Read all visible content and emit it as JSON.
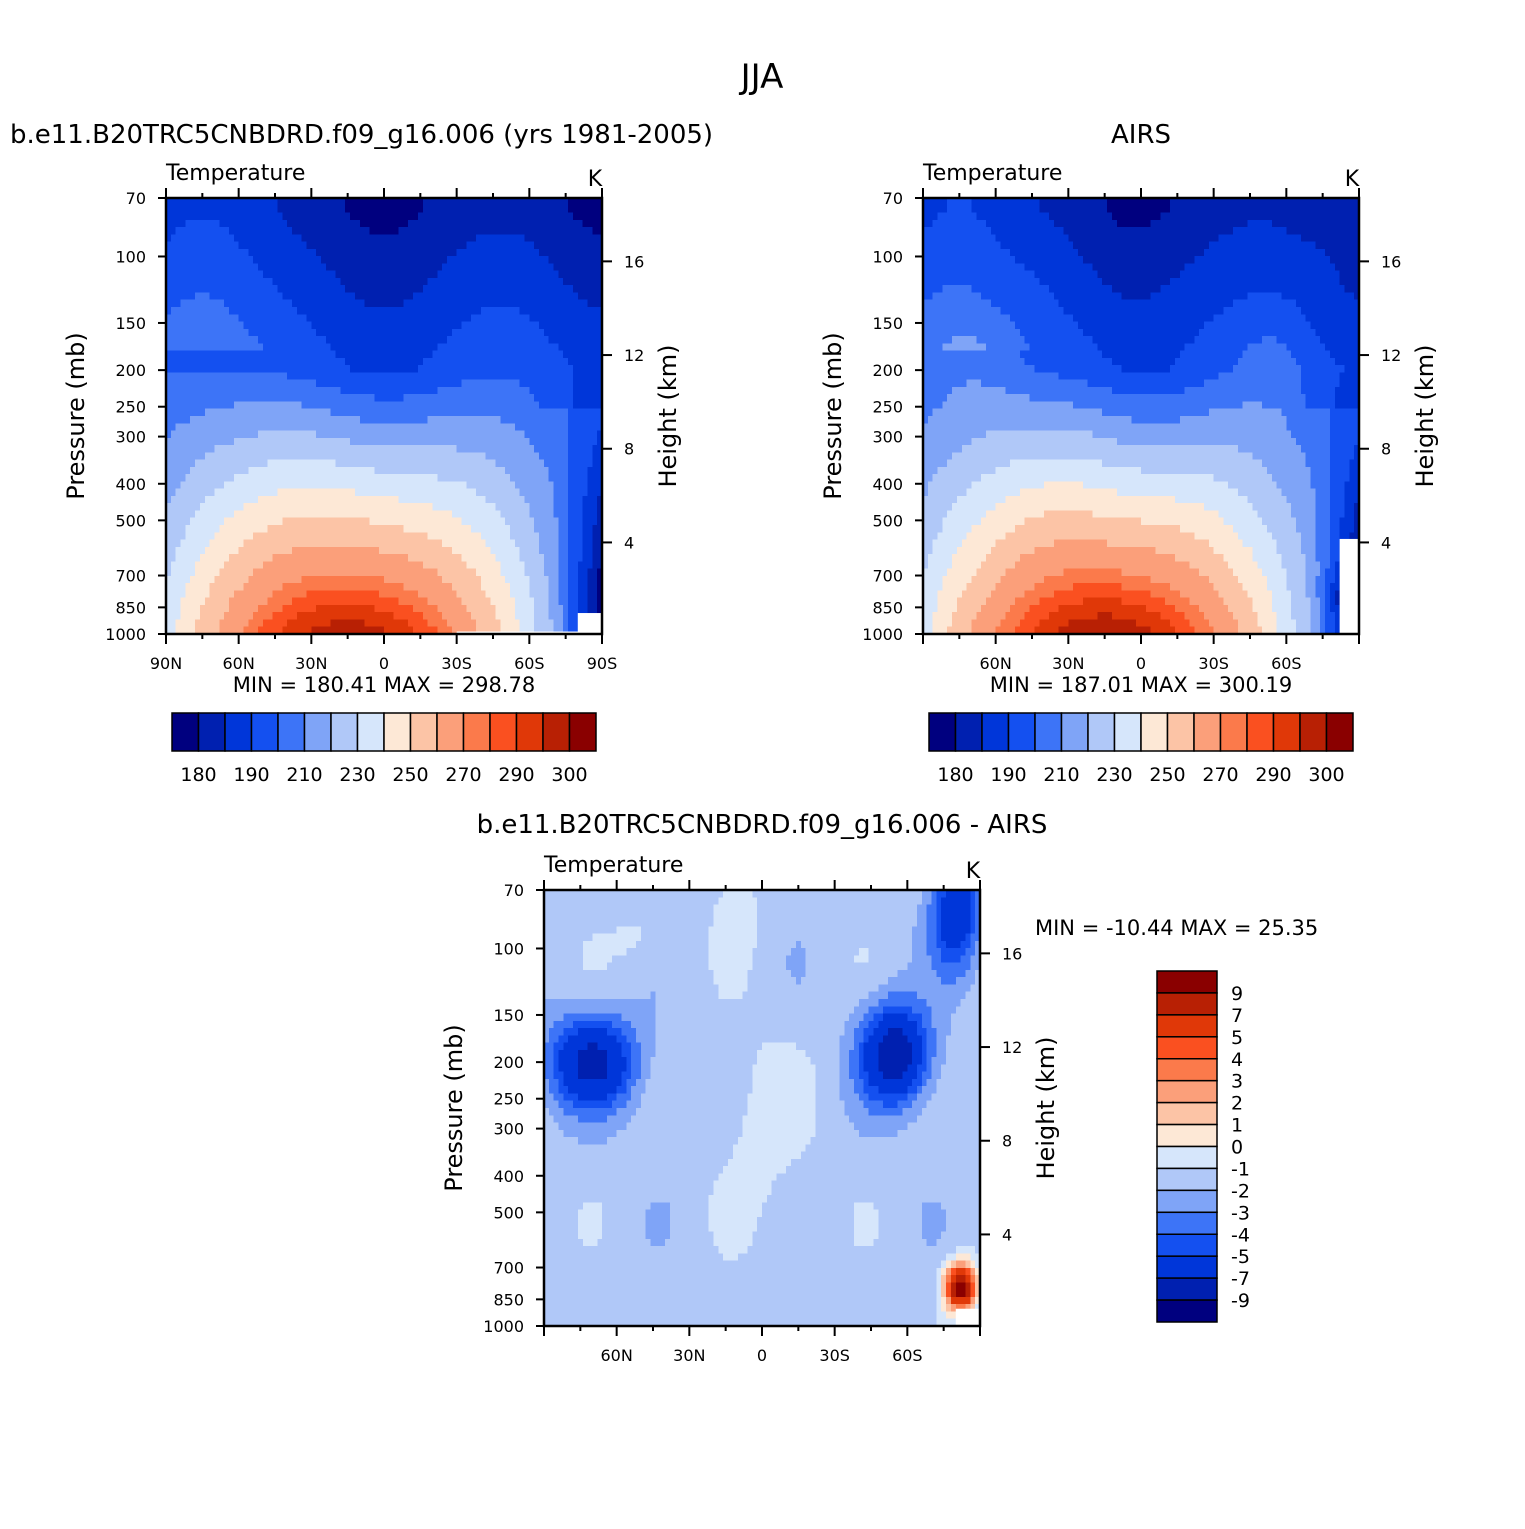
{
  "figure": {
    "title": "JJA",
    "season": "JJA"
  },
  "colors": {
    "temp_palette": [
      "#00007f",
      "#0020b0",
      "#0036d9",
      "#1450f0",
      "#3d74f7",
      "#7fa4f7",
      "#b0c8f8",
      "#d6e6fb",
      "#fde8d6",
      "#fcc4a6",
      "#fb9f7a",
      "#fb7a4b",
      "#fa5020",
      "#e03808",
      "#b82004",
      "#8a0000"
    ],
    "diff_palette": [
      "#00007f",
      "#0020b0",
      "#0036d9",
      "#1450f0",
      "#3d74f7",
      "#7fa4f7",
      "#b0c8f8",
      "#d6e6fb",
      "#fde8d6",
      "#fcc4a6",
      "#fb9f7a",
      "#fb7a4b",
      "#fa5020",
      "#e03808",
      "#b82004",
      "#8a0000"
    ]
  },
  "chart_data": [
    {
      "type": "contour",
      "title": "b.e11.B20TRC5CNBDRD.f09_g16.006 (yrs 1981-2005)",
      "variable_label": "Temperature",
      "units_label": "K",
      "ylabel": "Pressure (mb)",
      "y2label": "Height (km)",
      "xlim": [
        90,
        -90
      ],
      "x_ticks": [
        90,
        60,
        30,
        0,
        -30,
        -60,
        -90
      ],
      "x_tick_labels": [
        "90N",
        "60N",
        "30N",
        "0",
        "30S",
        "60S",
        "90S"
      ],
      "y_ticks": [
        70,
        100,
        150,
        200,
        250,
        300,
        400,
        500,
        700,
        850,
        1000
      ],
      "y_tick_labels": [
        "70",
        "100",
        "150",
        "200",
        "250",
        "300",
        "400",
        "500",
        "700",
        "850",
        "1000"
      ],
      "height_ticks": [
        4,
        8,
        12,
        16
      ],
      "height_tick_labels": [
        "4",
        "8",
        "12",
        "16"
      ],
      "min_label": "MIN = 180.41",
      "max_label": "MAX = 298.78",
      "min": 180.41,
      "max": 298.78,
      "colorbar_levels": [
        "180",
        "190",
        "210",
        "230",
        "250",
        "270",
        "290",
        "300"
      ]
    },
    {
      "type": "contour",
      "title": "AIRS",
      "variable_label": "Temperature",
      "units_label": "K",
      "ylabel": "Pressure (mb)",
      "y2label": "Height (km)",
      "xlim": [
        90,
        -90
      ],
      "x_ticks": [
        60,
        30,
        0,
        -30,
        -60
      ],
      "x_tick_labels": [
        "60N",
        "30N",
        "0",
        "30S",
        "60S"
      ],
      "y_ticks": [
        70,
        100,
        150,
        200,
        250,
        300,
        400,
        500,
        700,
        850,
        1000
      ],
      "y_tick_labels": [
        "70",
        "100",
        "150",
        "200",
        "250",
        "300",
        "400",
        "500",
        "700",
        "850",
        "1000"
      ],
      "height_ticks": [
        4,
        8,
        12,
        16
      ],
      "height_tick_labels": [
        "4",
        "8",
        "12",
        "16"
      ],
      "min_label": "MIN = 187.01",
      "max_label": "MAX = 300.19",
      "min": 187.01,
      "max": 300.19,
      "colorbar_levels": [
        "180",
        "190",
        "210",
        "230",
        "250",
        "270",
        "290",
        "300"
      ]
    },
    {
      "type": "contour",
      "title": "b.e11.B20TRC5CNBDRD.f09_g16.006 - AIRS",
      "variable_label": "Temperature",
      "units_label": "K",
      "ylabel": "Pressure (mb)",
      "y2label": "Height (km)",
      "xlim": [
        90,
        -90
      ],
      "x_ticks": [
        60,
        30,
        0,
        -30,
        -60
      ],
      "x_tick_labels": [
        "60N",
        "30N",
        "0",
        "30S",
        "60S"
      ],
      "y_ticks": [
        70,
        100,
        150,
        200,
        250,
        300,
        400,
        500,
        700,
        850,
        1000
      ],
      "y_tick_labels": [
        "70",
        "100",
        "150",
        "200",
        "250",
        "300",
        "400",
        "500",
        "700",
        "850",
        "1000"
      ],
      "height_ticks": [
        4,
        8,
        12,
        16
      ],
      "height_tick_labels": [
        "4",
        "8",
        "12",
        "16"
      ],
      "min_label": "MIN = -10.44",
      "max_label": "MAX = 25.35",
      "min": -10.44,
      "max": 25.35,
      "colorbar_levels": [
        "9",
        "7",
        "5",
        "4",
        "3",
        "2",
        "1",
        "0",
        "-1",
        "-2",
        "-3",
        "-4",
        "-5",
        "-7",
        "-9"
      ]
    }
  ]
}
